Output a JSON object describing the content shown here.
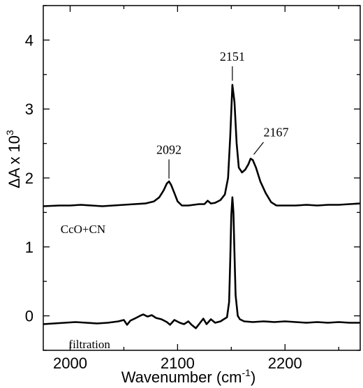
{
  "chart_data": {
    "type": "line",
    "xlabel": "Wavenumber (cm",
    "xlabel_sup": "-1",
    "xlabel_close": ")",
    "ylabel": "ΔA x 10",
    "ylabel_sup": "3",
    "xlim": [
      1975,
      2270
    ],
    "ylim": [
      -0.5,
      4.5
    ],
    "xticks": [
      2000,
      2100,
      2200
    ],
    "yticks": [
      0,
      1,
      2,
      3,
      4
    ],
    "x_minor_step": 50,
    "y_minor_step": 0.5,
    "grid": false,
    "series": [
      {
        "name": "CcO+CN",
        "baseline": 1.6,
        "points": [
          [
            1975,
            1.59
          ],
          [
            1990,
            1.6
          ],
          [
            2000,
            1.6
          ],
          [
            2010,
            1.61
          ],
          [
            2020,
            1.6
          ],
          [
            2030,
            1.59
          ],
          [
            2040,
            1.6
          ],
          [
            2050,
            1.61
          ],
          [
            2060,
            1.62
          ],
          [
            2070,
            1.63
          ],
          [
            2078,
            1.66
          ],
          [
            2083,
            1.72
          ],
          [
            2087,
            1.82
          ],
          [
            2090,
            1.92
          ],
          [
            2092,
            1.95
          ],
          [
            2094,
            1.9
          ],
          [
            2097,
            1.78
          ],
          [
            2100,
            1.66
          ],
          [
            2104,
            1.6
          ],
          [
            2110,
            1.6
          ],
          [
            2115,
            1.61
          ],
          [
            2120,
            1.62
          ],
          [
            2125,
            1.62
          ],
          [
            2128,
            1.67
          ],
          [
            2131,
            1.63
          ],
          [
            2135,
            1.64
          ],
          [
            2140,
            1.68
          ],
          [
            2144,
            1.76
          ],
          [
            2147,
            2.0
          ],
          [
            2149,
            2.6
          ],
          [
            2151,
            3.35
          ],
          [
            2153,
            3.1
          ],
          [
            2155,
            2.5
          ],
          [
            2157,
            2.15
          ],
          [
            2160,
            2.08
          ],
          [
            2163,
            2.12
          ],
          [
            2166,
            2.2
          ],
          [
            2168,
            2.28
          ],
          [
            2170,
            2.26
          ],
          [
            2173,
            2.15
          ],
          [
            2177,
            1.95
          ],
          [
            2182,
            1.78
          ],
          [
            2187,
            1.65
          ],
          [
            2192,
            1.6
          ],
          [
            2200,
            1.6
          ],
          [
            2210,
            1.6
          ],
          [
            2220,
            1.61
          ],
          [
            2230,
            1.6
          ],
          [
            2240,
            1.61
          ],
          [
            2250,
            1.61
          ],
          [
            2260,
            1.62
          ],
          [
            2270,
            1.63
          ]
        ]
      },
      {
        "name": "filtration",
        "baseline": -0.1,
        "points": [
          [
            1975,
            -0.12
          ],
          [
            1985,
            -0.11
          ],
          [
            1995,
            -0.1
          ],
          [
            2005,
            -0.09
          ],
          [
            2015,
            -0.1
          ],
          [
            2025,
            -0.11
          ],
          [
            2035,
            -0.1
          ],
          [
            2045,
            -0.08
          ],
          [
            2050,
            -0.06
          ],
          [
            2053,
            -0.13
          ],
          [
            2056,
            -0.07
          ],
          [
            2060,
            -0.04
          ],
          [
            2065,
            0.0
          ],
          [
            2068,
            0.02
          ],
          [
            2072,
            -0.01
          ],
          [
            2076,
            0.01
          ],
          [
            2080,
            -0.03
          ],
          [
            2085,
            -0.05
          ],
          [
            2090,
            -0.09
          ],
          [
            2093,
            -0.13
          ],
          [
            2097,
            -0.06
          ],
          [
            2102,
            -0.1
          ],
          [
            2106,
            -0.12
          ],
          [
            2110,
            -0.08
          ],
          [
            2113,
            -0.13
          ],
          [
            2117,
            -0.18
          ],
          [
            2121,
            -0.1
          ],
          [
            2124,
            -0.04
          ],
          [
            2127,
            -0.12
          ],
          [
            2131,
            -0.05
          ],
          [
            2135,
            -0.1
          ],
          [
            2140,
            -0.08
          ],
          [
            2143,
            -0.05
          ],
          [
            2146,
            -0.02
          ],
          [
            2148,
            0.2
          ],
          [
            2149,
            0.8
          ],
          [
            2150,
            1.45
          ],
          [
            2151,
            1.72
          ],
          [
            2152,
            1.5
          ],
          [
            2153,
            0.9
          ],
          [
            2154,
            0.3
          ],
          [
            2156,
            0.0
          ],
          [
            2158,
            -0.05
          ],
          [
            2162,
            -0.08
          ],
          [
            2170,
            -0.09
          ],
          [
            2180,
            -0.08
          ],
          [
            2190,
            -0.09
          ],
          [
            2200,
            -0.08
          ],
          [
            2210,
            -0.09
          ],
          [
            2220,
            -0.1
          ],
          [
            2230,
            -0.09
          ],
          [
            2240,
            -0.1
          ],
          [
            2250,
            -0.09
          ],
          [
            2260,
            -0.1
          ],
          [
            2270,
            -0.1
          ]
        ]
      }
    ],
    "annotations": [
      {
        "text": "2092",
        "x": 2092,
        "y": 1.95,
        "label_y": 2.35
      },
      {
        "text": "2151",
        "x": 2151,
        "y": 3.37,
        "label_y": 3.7
      },
      {
        "text": "2167",
        "x": 2167,
        "y": 2.28,
        "label_y": 2.6
      }
    ],
    "series_labels": [
      {
        "text": "CcO+CN",
        "x": 2012,
        "y": 1.2
      },
      {
        "text": "filtration",
        "x": 2018,
        "y": -0.47
      }
    ]
  }
}
